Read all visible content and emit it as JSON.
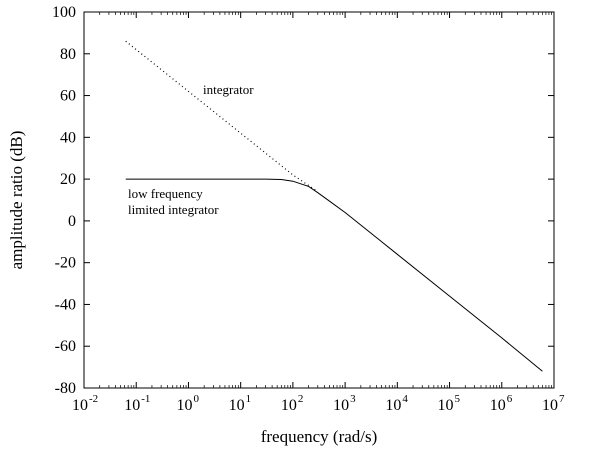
{
  "chart_data": {
    "type": "line",
    "xlabel": "frequency (rad/s)",
    "ylabel": "amplitude ratio (dB)",
    "x_scale": "log",
    "xlim": [
      0.01,
      10000000
    ],
    "ylim": [
      -80,
      100
    ],
    "x_ticks": [
      {
        "base": "10",
        "exp": "-2"
      },
      {
        "base": "10",
        "exp": "-1"
      },
      {
        "base": "10",
        "exp": "0"
      },
      {
        "base": "10",
        "exp": "1"
      },
      {
        "base": "10",
        "exp": "2"
      },
      {
        "base": "10",
        "exp": "3"
      },
      {
        "base": "10",
        "exp": "4"
      },
      {
        "base": "10",
        "exp": "5"
      },
      {
        "base": "10",
        "exp": "6"
      },
      {
        "base": "10",
        "exp": "7"
      }
    ],
    "y_ticks": [
      "100",
      "80",
      "60",
      "40",
      "20",
      "0",
      "-20",
      "-40",
      "-60",
      "-80"
    ],
    "grid": false,
    "legend": "none",
    "annotations": {
      "integrator": "integrator",
      "limited_line1": "low frequency",
      "limited_line2": "limited integrator"
    },
    "series": [
      {
        "label_ref": "integrator",
        "style": "dotted",
        "x": [
          0.063,
          0.1,
          1,
          10,
          100,
          300
        ],
        "y": [
          86,
          82,
          62,
          42,
          22,
          14
        ]
      },
      {
        "label_ref": "low frequency limited integrator",
        "style": "solid",
        "x": [
          0.063,
          0.1,
          1,
          10,
          30,
          60,
          100,
          200,
          300,
          500,
          1000,
          10000,
          100000,
          1000000,
          6000000
        ],
        "y": [
          20,
          20,
          20,
          20,
          20,
          19.8,
          19,
          16.5,
          13.5,
          9.5,
          4,
          -16,
          -36,
          -56,
          -72
        ]
      }
    ]
  }
}
